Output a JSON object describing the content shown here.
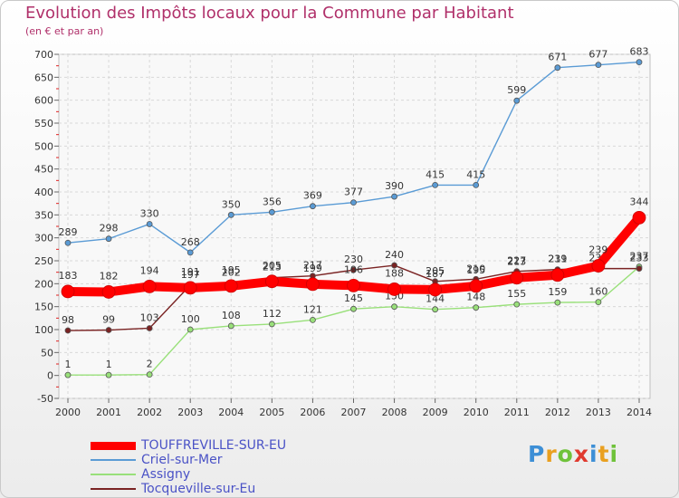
{
  "header": {
    "title": "Evolution des Impôts locaux pour la Commune par Habitant",
    "subtitle": "(en € et par an)"
  },
  "logo": {
    "letters": [
      "P",
      "r",
      "o",
      "x",
      "i",
      "t",
      "i"
    ],
    "colors": [
      "#3d8fd6",
      "#e9a020",
      "#6fc23a",
      "#e03a2f",
      "#3d8fd6",
      "#e9a020",
      "#6fc23a"
    ]
  },
  "chart_data": {
    "type": "line",
    "x": [
      "2000",
      "2001",
      "2002",
      "2003",
      "2004",
      "2005",
      "2006",
      "2007",
      "2008",
      "2009",
      "2010",
      "2011",
      "2012",
      "2013",
      "2014"
    ],
    "ylim": [
      -50,
      700
    ],
    "yticks": [
      -50,
      0,
      50,
      100,
      150,
      200,
      250,
      300,
      350,
      400,
      450,
      500,
      550,
      600,
      650,
      700
    ],
    "grid": true,
    "legend_position": "bottom-left",
    "series": [
      {
        "name": "TOUFFREVILLE-SUR-EU",
        "color": "#ff0000",
        "values": [
          183,
          182,
          194,
          191,
          195,
          205,
          199,
          196,
          188,
          187,
          195,
          213,
          219,
          239,
          344
        ]
      },
      {
        "name": "Criel-sur-Mer",
        "color": "#5a9bd5",
        "values": [
          289,
          298,
          330,
          268,
          350,
          356,
          369,
          377,
          390,
          415,
          415,
          599,
          671,
          677,
          683
        ]
      },
      {
        "name": "Assigny",
        "color": "#99e07a",
        "values": [
          1,
          1,
          2,
          100,
          108,
          112,
          121,
          145,
          150,
          144,
          148,
          155,
          159,
          160,
          237
        ]
      },
      {
        "name": "Tocqueville-sur-Eu",
        "color": "#7a2323",
        "values": [
          98,
          99,
          103,
          197,
          202,
          213,
          217,
          230,
          240,
          205,
          210,
          227,
          231,
          233,
          233
        ]
      }
    ]
  }
}
